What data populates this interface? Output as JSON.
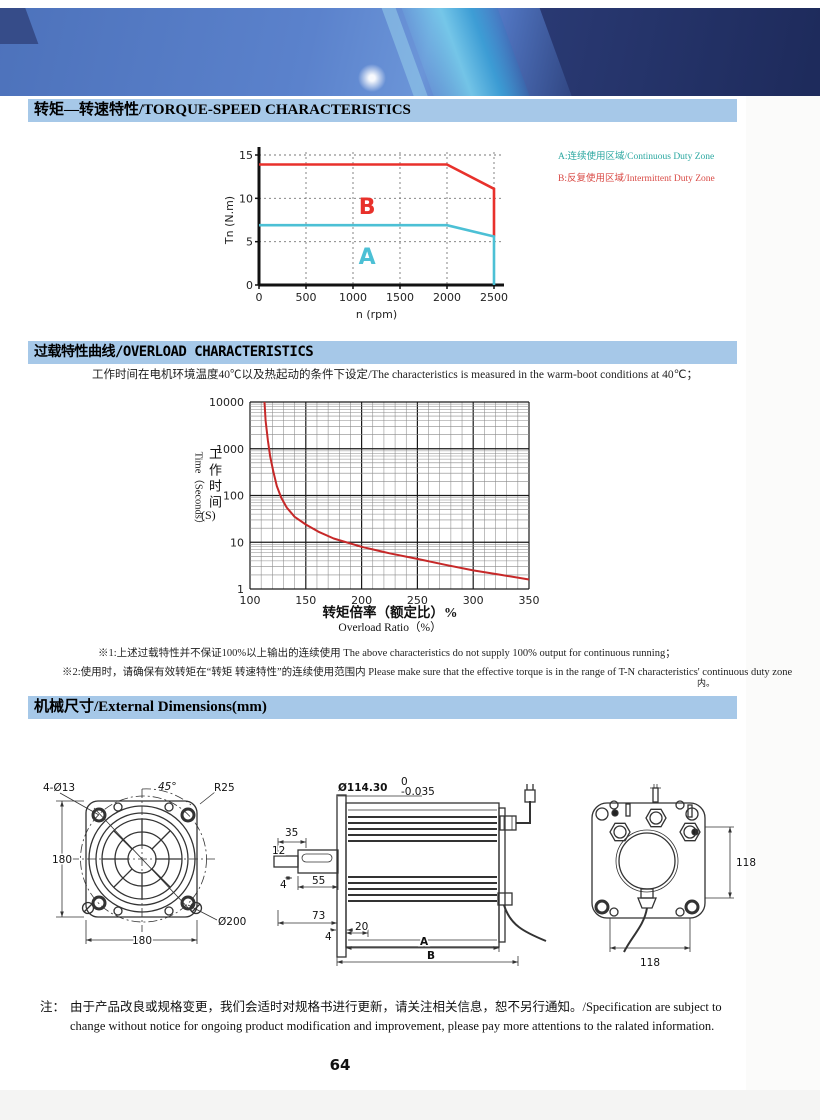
{
  "page": {
    "number": "64"
  },
  "sections": {
    "torque_speed": {
      "title": "转矩—转速特性/TORQUE-SPEED CHARACTERISTICS",
      "legend_a": "A:连续使用区域/Continuous Duty Zone",
      "legend_b": "B:反复使用区域/Intermittent Duty Zone"
    },
    "overload": {
      "title": "过载特性曲线/OVERLOAD CHARACTERISTICS",
      "subtitle": "工作时间在电机环境温度40℃以及热起动的条件下设定/The characteristics is measured in the warm-boot conditions at 40℃；",
      "ylabel_en": "Time（Seconds）",
      "ylabel_cn": "工作时间",
      "ylabel_unit": "(S)",
      "xlabel_cn": "转矩倍率（额定比）%",
      "xlabel_en": "Overload Ratio（%）",
      "note1": "※1:上述过载特性并不保证100%以上输出的连续使用 The above characteristics do not supply 100% output for continuous running；",
      "note2": "※2:使用时，请确保有效转矩在“转矩 转速特性”的连续使用范围内 Please make sure that the effective torque is in the range of T-N characteristics' continuous duty zone",
      "note2_tail": "内。"
    },
    "dimensions": {
      "title": "机械尺寸/External Dimensions(mm)",
      "front": {
        "bolt_holes": "4-Ø13",
        "angle": "45°",
        "radius": "R25",
        "height": "180",
        "width": "180",
        "circle": "Ø200"
      },
      "side": {
        "spigot": "Ø114.30",
        "tol_upper": "0",
        "tol_lower": "-0.035",
        "d35": "35",
        "d12": "12",
        "d4a": "4",
        "d55": "55",
        "d73": "73",
        "d4b": "4",
        "d20": "20",
        "dA": "A",
        "dB": "B"
      },
      "rear": {
        "height": "118",
        "width": "118"
      }
    }
  },
  "footnote": {
    "prefix": "注：",
    "line1": "由于产品改良或规格变更，我们会适时对规格书进行更新，请关注相关信息，恕不另行通知。/Specification are subject to change without notice",
    "line2": "for ongoing product modification and improvement, please pay more attentions to the ralated information."
  },
  "colors": {
    "section_bar": "#a6c8e8",
    "curve_red": "#e8312b",
    "curve_cyan": "#4cc0d5",
    "legend_teal": "#2aa7a0",
    "legend_red": "#d94a45",
    "overload_red": "#c62828"
  },
  "chart_data": [
    {
      "type": "line",
      "title": "Torque-Speed Characteristics",
      "xlabel": "n (rpm)",
      "ylabel": "Tn (N.m)",
      "xlim": [
        0,
        2500
      ],
      "ylim": [
        0,
        15
      ],
      "xticks": [
        0,
        500,
        1000,
        1500,
        2000,
        2500
      ],
      "yticks": [
        0,
        5,
        10,
        15
      ],
      "grid": "dashed",
      "legend_position": "right-outside",
      "series": [
        {
          "name": "B Intermittent duty limit",
          "color": "#e8312b",
          "points": [
            [
              0,
              13.9
            ],
            [
              2000,
              13.9
            ],
            [
              2500,
              11.1
            ],
            [
              2500,
              5.6
            ]
          ]
        },
        {
          "name": "A Continuous duty limit",
          "color": "#4cc0d5",
          "points": [
            [
              0,
              6.9
            ],
            [
              2000,
              6.9
            ],
            [
              2500,
              5.6
            ],
            [
              2500,
              0
            ]
          ]
        }
      ],
      "labels": [
        {
          "text": "B",
          "x": 1150,
          "y": 8.2,
          "color": "#e8312b"
        },
        {
          "text": "A",
          "x": 1150,
          "y": 2.4,
          "color": "#4cc0d5"
        }
      ]
    },
    {
      "type": "line",
      "title": "Overload Characteristics",
      "xlabel": "Overload Ratio (%)",
      "ylabel": "Time (Seconds)",
      "xlim": [
        100,
        350
      ],
      "ylim_log": [
        1,
        10000
      ],
      "xticks": [
        100,
        150,
        200,
        250,
        300,
        350
      ],
      "yticks": [
        1,
        10,
        100,
        1000,
        10000
      ],
      "grid": "log-full",
      "series": [
        {
          "name": "overload time limit",
          "color": "#c62828",
          "points": [
            [
              113,
              10000
            ],
            [
              114,
              4000
            ],
            [
              116,
              1500
            ],
            [
              118,
              700
            ],
            [
              121,
              320
            ],
            [
              124,
              160
            ],
            [
              128,
              90
            ],
            [
              133,
              55
            ],
            [
              140,
              35
            ],
            [
              150,
              24
            ],
            [
              162,
              16.5
            ],
            [
              175,
              12
            ],
            [
              200,
              8
            ],
            [
              225,
              5.8
            ],
            [
              250,
              4.4
            ],
            [
              275,
              3.3
            ],
            [
              300,
              2.5
            ],
            [
              325,
              2.0
            ],
            [
              350,
              1.6
            ]
          ]
        }
      ]
    }
  ]
}
